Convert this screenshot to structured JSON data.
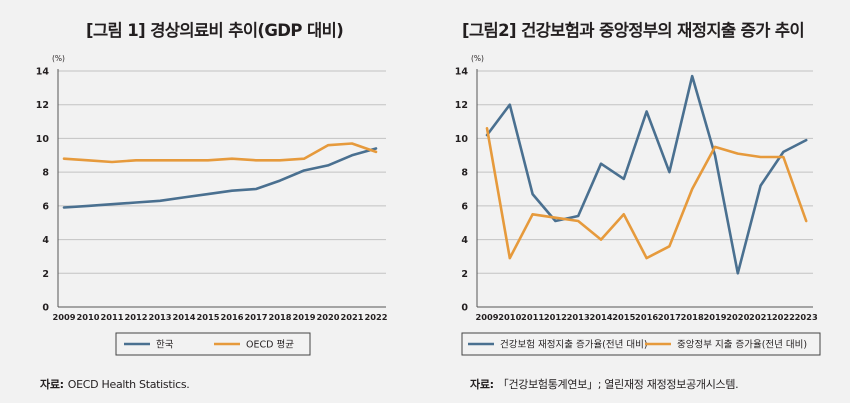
{
  "colors": {
    "korea": "#4a7090",
    "oecd": "#e69a3c",
    "grid": "#c3c3c3",
    "axis": "#555555",
    "background": "#f2f2f2"
  },
  "sources": [
    {
      "label": "자료:",
      "text": "OECD Health Statistics."
    },
    {
      "label": "자료:",
      "text": "「건강보험통계연보」; 열린재정 재정정보공개시스템."
    }
  ],
  "chart_data": [
    {
      "type": "line",
      "title": "[그림 1] 경상의료비 추이(GDP 대비)",
      "unit": "(%)",
      "ylim": [
        0,
        14
      ],
      "yticks": [
        "0",
        "2",
        "4",
        "6",
        "8",
        "10",
        "12",
        "14"
      ],
      "x": [
        "2009",
        "2010",
        "2011",
        "2012",
        "2013",
        "2014",
        "2015",
        "2016",
        "2017",
        "2018",
        "2019",
        "2020",
        "2021",
        "2022"
      ],
      "series": [
        {
          "name": "한국",
          "color": "#4a7090",
          "values": [
            5.9,
            6.0,
            6.1,
            6.2,
            6.3,
            6.5,
            6.7,
            6.9,
            7.0,
            7.5,
            8.1,
            8.4,
            9.0,
            9.4
          ]
        },
        {
          "name": "OECD 평균",
          "color": "#e69a3c",
          "values": [
            8.8,
            8.7,
            8.6,
            8.7,
            8.7,
            8.7,
            8.7,
            8.8,
            8.7,
            8.7,
            8.8,
            9.6,
            9.7,
            9.2
          ]
        }
      ]
    },
    {
      "type": "line",
      "title": "[그림2] 건강보험과 중앙정부의 재정지출 증가 추이",
      "unit": "(%)",
      "ylim": [
        0,
        14
      ],
      "yticks": [
        "0",
        "2",
        "4",
        "6",
        "8",
        "10",
        "12",
        "14"
      ],
      "x": [
        "2009",
        "2010",
        "2011",
        "2012",
        "2013",
        "2014",
        "2015",
        "2016",
        "2017",
        "2018",
        "2019",
        "2020",
        "2021",
        "2022",
        "2023"
      ],
      "series": [
        {
          "name": "건강보험 재정지출 증가율(전년 대비)",
          "color": "#4a7090",
          "values": [
            10.2,
            12.0,
            6.7,
            5.1,
            5.4,
            8.5,
            7.6,
            11.6,
            8.0,
            13.7,
            9.0,
            2.0,
            7.2,
            9.2,
            9.9
          ]
        },
        {
          "name": "중앙정부 지출 증가율(전년 대비)",
          "color": "#e69a3c",
          "values": [
            10.6,
            2.9,
            5.5,
            5.3,
            5.1,
            4.0,
            5.5,
            2.9,
            3.6,
            7.0,
            9.5,
            9.1,
            8.9,
            8.9,
            5.1
          ]
        }
      ]
    }
  ]
}
